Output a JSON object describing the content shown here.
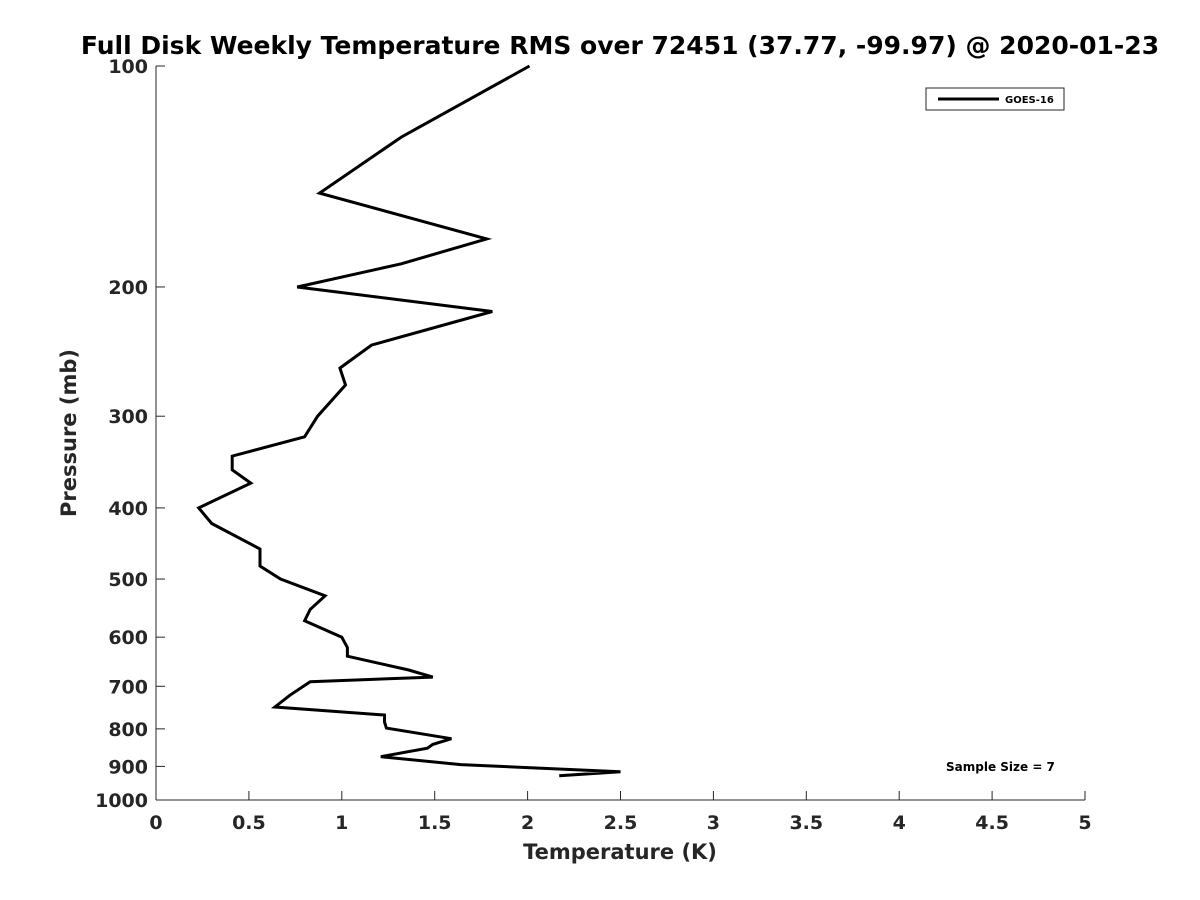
{
  "chart_data": {
    "type": "line",
    "title": "Full Disk Weekly Temperature RMS over 72451 (37.77, -99.97) @ 2020-01-23",
    "xlabel": "Temperature (K)",
    "ylabel": "Pressure (mb)",
    "xlim": [
      0,
      5
    ],
    "ylim": [
      100,
      1000
    ],
    "yscale": "log",
    "y_reversed": true,
    "grid": false,
    "xticks": [
      0,
      0.5,
      1,
      1.5,
      2,
      2.5,
      3,
      3.5,
      4,
      4.5,
      5
    ],
    "xtick_labels": [
      "0",
      "0.5",
      "1",
      "1.5",
      "2",
      "2.5",
      "3",
      "3.5",
      "4",
      "4.5",
      "5"
    ],
    "yticks": [
      100,
      200,
      300,
      400,
      500,
      600,
      700,
      800,
      900,
      1000
    ],
    "ytick_labels": [
      "100",
      "200",
      "300",
      "400",
      "500",
      "600",
      "700",
      "800",
      "900",
      "1000"
    ],
    "legend": {
      "position": "top-right",
      "entries": [
        "GOES-16"
      ]
    },
    "annotation": "Sample Size = 7",
    "series": [
      {
        "name": "GOES-16",
        "color": "#000000",
        "x": [
          2.01,
          1.32,
          0.88,
          1.78,
          1.32,
          0.76,
          1.81,
          1.16,
          0.99,
          1.02,
          0.87,
          0.8,
          0.41,
          0.41,
          0.51,
          0.23,
          0.3,
          0.56,
          0.56,
          0.67,
          0.91,
          0.83,
          0.8,
          1.0,
          1.03,
          1.03,
          1.36,
          1.49,
          0.83,
          0.72,
          0.64,
          1.23,
          1.23,
          1.24,
          1.59,
          1.49,
          1.46,
          1.21,
          1.64,
          2.5,
          2.17
        ],
        "y": [
          100,
          125,
          149,
          172,
          186,
          200,
          216,
          240,
          258,
          272,
          300,
          320,
          340,
          355,
          370,
          400,
          420,
          455,
          480,
          500,
          527,
          550,
          570,
          600,
          620,
          637,
          665,
          680,
          690,
          720,
          747,
          766,
          783,
          798,
          825,
          840,
          850,
          873,
          895,
          915,
          927
        ]
      }
    ]
  }
}
